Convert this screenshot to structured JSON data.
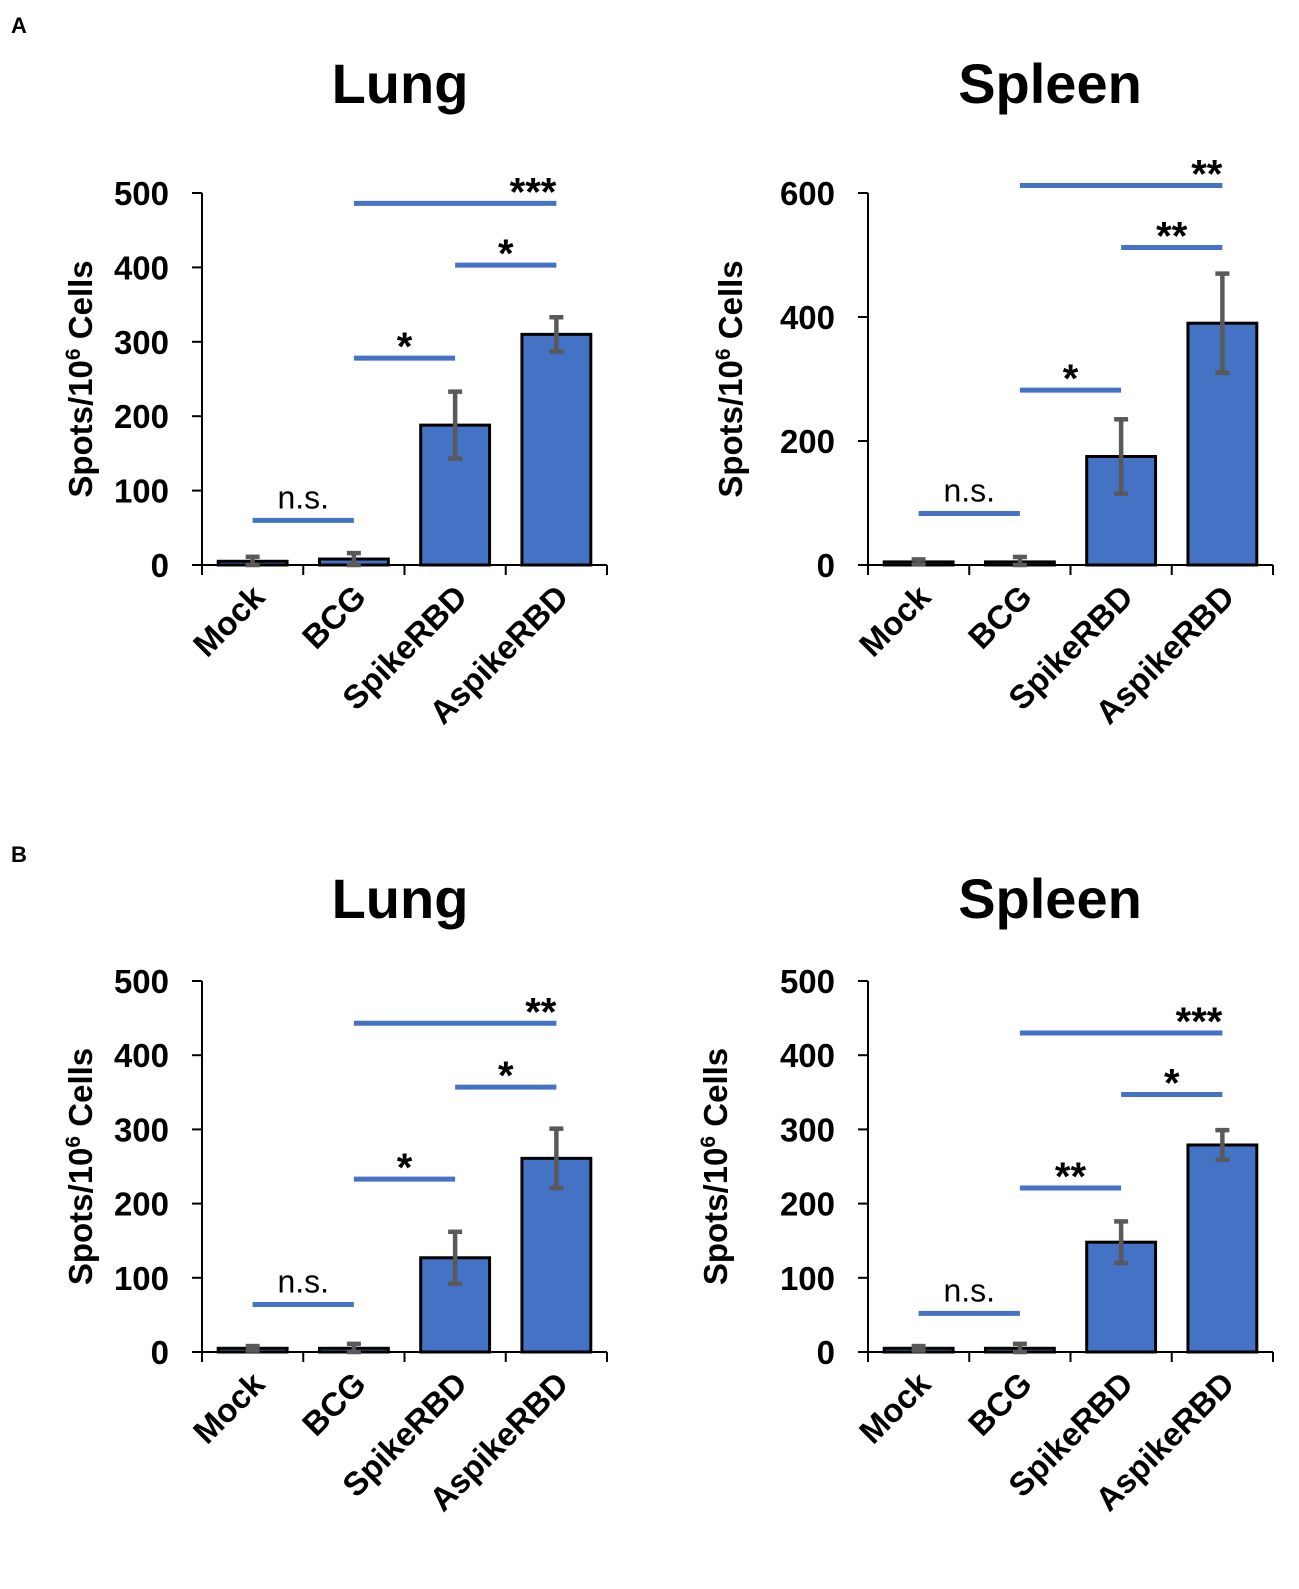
{
  "panel_letters": [
    "A",
    "B"
  ],
  "chart_data": [
    {
      "type": "bar",
      "panel": "A",
      "title": "Lung",
      "ylabel": "Spots/10^6 Cells",
      "ylabel_main": "Spots/10",
      "ylabel_sup": "6",
      "ylabel_tail": " Cells",
      "ylim": [
        0,
        500
      ],
      "yticks": [
        0,
        100,
        200,
        300,
        400,
        500
      ],
      "categories": [
        "Mock",
        "BCG",
        "SpikeRBD",
        "AspikeRBD"
      ],
      "values": [
        5,
        8,
        188,
        310
      ],
      "errors": [
        6,
        8,
        45,
        23
      ],
      "significance": [
        {
          "from": 0,
          "to": 1,
          "label": "n.s.",
          "level": 60
        },
        {
          "from": 1,
          "to": 2,
          "label": "*",
          "level": 278
        },
        {
          "from": 2,
          "to": 3,
          "label": "*",
          "level": 403
        },
        {
          "from": 1,
          "to": 3,
          "label": "***",
          "level": 486
        }
      ]
    },
    {
      "type": "bar",
      "panel": "A",
      "title": "Spleen",
      "ylabel": "Spots/10^6 Cells",
      "ylabel_main": "Spots/10",
      "ylabel_sup": "6",
      "ylabel_tail": " Cells",
      "ylim": [
        0,
        600
      ],
      "yticks": [
        0,
        200,
        400,
        600
      ],
      "categories": [
        "Mock",
        "BCG",
        "SpikeRBD",
        "AspikeRBD"
      ],
      "values": [
        5,
        5,
        175,
        390
      ],
      "errors": [
        4,
        8,
        60,
        80
      ],
      "significance": [
        {
          "from": 0,
          "to": 1,
          "label": "n.s.",
          "level": 83
        },
        {
          "from": 1,
          "to": 2,
          "label": "*",
          "level": 282
        },
        {
          "from": 2,
          "to": 3,
          "label": "**",
          "level": 512
        },
        {
          "from": 1,
          "to": 3,
          "label": "**",
          "level": 612
        }
      ]
    },
    {
      "type": "bar",
      "panel": "B",
      "title": "Lung",
      "ylabel": "Spots/10^6 Cells",
      "ylabel_main": "Spots/10",
      "ylabel_sup": "6",
      "ylabel_tail": " Cells",
      "ylim": [
        0,
        500
      ],
      "yticks": [
        0,
        100,
        200,
        300,
        400,
        500
      ],
      "categories": [
        "Mock",
        "BCG",
        "SpikeRBD",
        "AspikeRBD"
      ],
      "values": [
        5,
        5,
        127,
        261
      ],
      "errors": [
        3,
        6,
        35,
        40
      ],
      "significance": [
        {
          "from": 0,
          "to": 1,
          "label": "n.s.",
          "level": 64
        },
        {
          "from": 1,
          "to": 2,
          "label": "*",
          "level": 233
        },
        {
          "from": 2,
          "to": 3,
          "label": "*",
          "level": 357
        },
        {
          "from": 1,
          "to": 3,
          "label": "**",
          "level": 443
        }
      ]
    },
    {
      "type": "bar",
      "panel": "B",
      "title": "Spleen",
      "ylabel": "Spots/10^6 Cells",
      "ylabel_main": "Spots/10",
      "ylabel_sup": "6",
      "ylabel_tail": " Cells",
      "ylim": [
        0,
        500
      ],
      "yticks": [
        0,
        100,
        200,
        300,
        400,
        500
      ],
      "categories": [
        "Mock",
        "BCG",
        "SpikeRBD",
        "AspikeRBD"
      ],
      "values": [
        5,
        5,
        148,
        279
      ],
      "errors": [
        3,
        6,
        28,
        20
      ],
      "significance": [
        {
          "from": 0,
          "to": 1,
          "label": "n.s.",
          "level": 52
        },
        {
          "from": 1,
          "to": 2,
          "label": "**",
          "level": 221
        },
        {
          "from": 2,
          "to": 3,
          "label": "*",
          "level": 347
        },
        {
          "from": 1,
          "to": 3,
          "label": "***",
          "level": 430
        }
      ]
    }
  ]
}
